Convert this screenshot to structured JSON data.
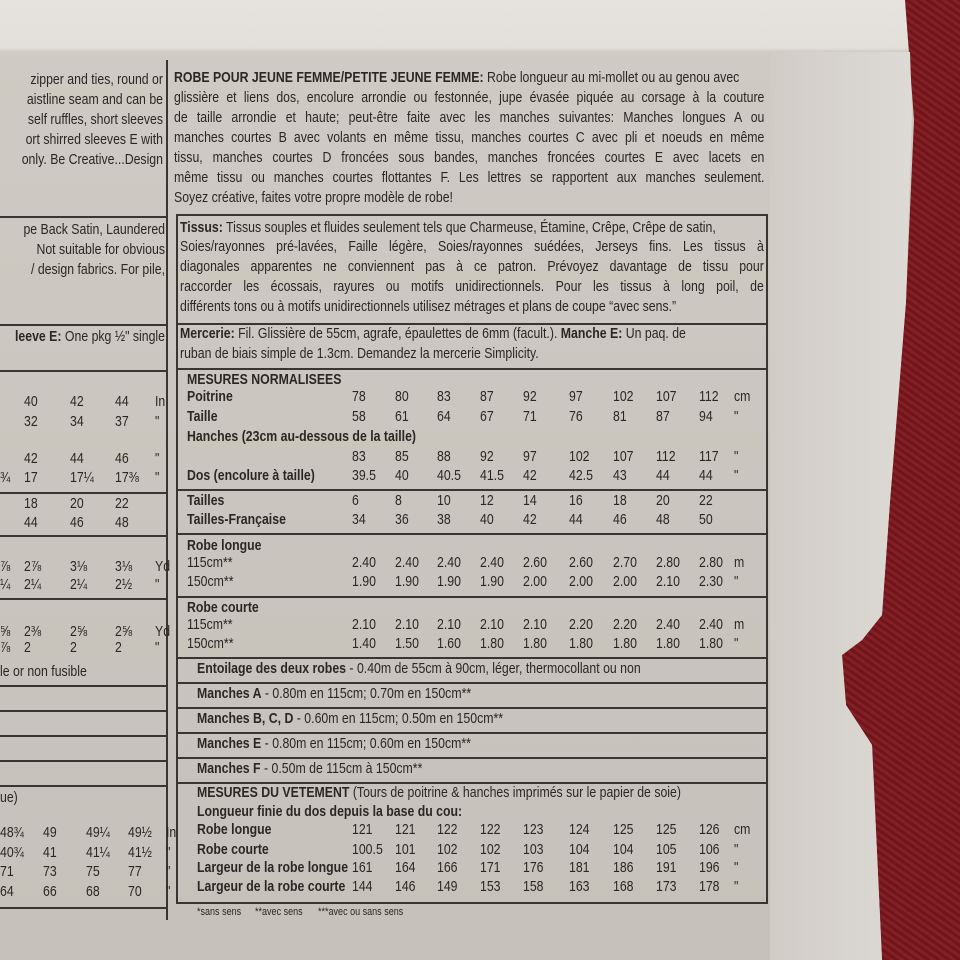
{
  "left_column": {
    "description_lines": [
      "zipper and ties, round or",
      "aistline seam and can be",
      "self ruffles, short sleeves",
      "ort shirred sleeves E with",
      "only. Be Creative...Design"
    ],
    "fabric_lines": [
      "pe Back Satin, Laundered",
      "Not suitable for obvious",
      "/ design fabrics. For pile,"
    ],
    "notions": {
      "bold": "leeve E:",
      "text": " One pkg ½\" single"
    },
    "size_rows": [
      [
        "",
        "40",
        "42",
        "44",
        "In"
      ],
      [
        "",
        "32",
        "34",
        "37",
        "\""
      ],
      [
        "",
        "42",
        "44",
        "46",
        "\""
      ],
      [
        "¾",
        "17",
        "17¼",
        "17⅜",
        "\""
      ],
      [
        "",
        "18",
        "20",
        "22",
        ""
      ],
      [
        "",
        "44",
        "46",
        "48",
        ""
      ],
      [
        "⅞",
        "2⅞",
        "3⅛",
        "3⅛",
        "Yd"
      ],
      [
        "¼",
        "2¼",
        "2¼",
        "2½",
        "\""
      ],
      [
        "⅝",
        "2⅜",
        "2⅝",
        "2⅝",
        "Yd"
      ],
      [
        "⅞",
        "2",
        "2",
        "2",
        "\""
      ]
    ],
    "interfacing_fragment": "le or non fusible",
    "garment_fragment": "ue)",
    "garment_rows": [
      [
        "48¾",
        "49",
        "49¼",
        "49½",
        "In"
      ],
      [
        "40¾",
        "41",
        "41¼",
        "41½",
        "\""
      ],
      [
        "71",
        "73",
        "75",
        "77",
        "\""
      ],
      [
        "64",
        "66",
        "68",
        "70",
        "\""
      ]
    ]
  },
  "right_column": {
    "description": {
      "heading": "ROBE POUR JEUNE FEMME/PETITE JEUNE FEMME:",
      "first_line": " Robe longueur au mi-mollet ou au genou avec",
      "lines": [
        "glissière et liens dos, encolure arrondie ou festonnée, jupe évasée piquée au corsage à la couture",
        "de taille arrondie et haute; peut-être faite avec les manches suivantes: Manches longues A ou",
        "manches courtes B avec volants en même tissu, manches courtes C avec pli et noeuds en même",
        "tissu, manches courtes D froncées sous bandes, manches froncées courtes E avec lacets en",
        "même tissu ou manches courtes flottantes F. Les lettres se rapportent aux manches seulement.",
        "Soyez créative, faites votre propre modèle de robe!"
      ]
    },
    "fabrics": {
      "label": "Tissus:",
      "first_line": " Tissus souples et fluides seulement tels que Charmeuse, Étamine, Crêpe, Crêpe de satin,",
      "lines": [
        "Soies/rayonnes pré-lavées, Faille légère, Soies/rayonnes suédées, Jerseys fins. Les tissus à",
        "diagonales apparentes ne conviennent pas à ce patron. Prévoyez davantage de tissu pour",
        "raccorder les écossais, rayures ou motifs unidirectionnels. Pour les tissus à long poil, de",
        "différents tons ou à motifs unidirectionnels utilisez métrages et plans de coupe “avec sens.”"
      ]
    },
    "notions": {
      "label": "Mercerie:",
      "text1": " Fil. Glissière de 55cm, agrafe, épaulettes de 6mm (facult.). ",
      "label2": "Manche E:",
      "text2": " Un paq. de",
      "line2": "ruban de biais simple de 1.3cm. Demandez la mercerie Simplicity."
    },
    "table": [
      {
        "label": "MESURES NORMALISEES"
      },
      {
        "label": "Poitrine",
        "values": [
          "78",
          "80",
          "83",
          "87",
          "92",
          "97",
          "102",
          "107",
          "112"
        ],
        "unit": "cm"
      },
      {
        "label": "Taille",
        "values": [
          "58",
          "61",
          "64",
          "67",
          "71",
          "76",
          "81",
          "87",
          "94"
        ],
        "unit": "\""
      },
      {
        "label": "Hanches (23cm au-dessous de la taille)"
      },
      {
        "label": "",
        "values": [
          "83",
          "85",
          "88",
          "92",
          "97",
          "102",
          "107",
          "112",
          "117"
        ],
        "unit": "\""
      },
      {
        "label": "Dos (encolure à taille)",
        "values": [
          "39.5",
          "40",
          "40.5",
          "41.5",
          "42",
          "42.5",
          "43",
          "44",
          "44"
        ],
        "unit": "\""
      },
      {
        "label": "Tailles",
        "values": [
          "6",
          "8",
          "10",
          "12",
          "14",
          "16",
          "18",
          "20",
          "22"
        ],
        "unit": ""
      },
      {
        "label": "Tailles-Française",
        "values": [
          "34",
          "36",
          "38",
          "40",
          "42",
          "44",
          "46",
          "48",
          "50"
        ],
        "unit": ""
      },
      {
        "label": "Robe longue"
      },
      {
        "label": "115cm**",
        "values": [
          "2.40",
          "2.40",
          "2.40",
          "2.40",
          "2.60",
          "2.60",
          "2.70",
          "2.80",
          "2.80"
        ],
        "unit": "m"
      },
      {
        "label": "150cm**",
        "values": [
          "1.90",
          "1.90",
          "1.90",
          "1.90",
          "2.00",
          "2.00",
          "2.00",
          "2.10",
          "2.30"
        ],
        "unit": "\""
      },
      {
        "label": "Robe courte"
      },
      {
        "label": "115cm**",
        "values": [
          "2.10",
          "2.10",
          "2.10",
          "2.10",
          "2.10",
          "2.20",
          "2.20",
          "2.40",
          "2.40"
        ],
        "unit": "m"
      },
      {
        "label": "150cm**",
        "values": [
          "1.40",
          "1.50",
          "1.60",
          "1.80",
          "1.80",
          "1.80",
          "1.80",
          "1.80",
          "1.80"
        ],
        "unit": "\""
      },
      {
        "label": "Entoilage des deux robes",
        "text": " - 0.40m de 55cm à 90cm, léger, thermocollant ou non"
      },
      {
        "label": "Manches A",
        "text": " - 0.80m en 115cm; 0.70m en 150cm**"
      },
      {
        "label": "Manches B, C, D",
        "text": " - 0.60m en 115cm; 0.50m en 150cm**"
      },
      {
        "label": "Manches E",
        "text": " - 0.80m en 115cm; 0.60m en 150cm**"
      },
      {
        "label": "Manches F",
        "text": " - 0.50m de 115cm à 150cm**"
      },
      {
        "label": "MESURES DU VETEMENT",
        "text": " (Tours de poitrine & hanches imprimés sur le papier de soie)"
      },
      {
        "label": "Longueur finie du dos depuis la base du cou:"
      },
      {
        "label": "Robe longue",
        "values": [
          "121",
          "121",
          "122",
          "122",
          "123",
          "124",
          "125",
          "125",
          "126"
        ],
        "unit": "cm"
      },
      {
        "label": "Robe courte",
        "values": [
          "100.5",
          "101",
          "102",
          "102",
          "103",
          "104",
          "104",
          "105",
          "106"
        ],
        "unit": "\""
      },
      {
        "label": "Largeur de la robe longue",
        "values": [
          "161",
          "164",
          "166",
          "171",
          "176",
          "181",
          "186",
          "191",
          "196"
        ],
        "unit": "\""
      },
      {
        "label": "Largeur de la robe courte",
        "values": [
          "144",
          "146",
          "149",
          "153",
          "158",
          "163",
          "168",
          "173",
          "178"
        ],
        "unit": "\""
      }
    ],
    "footnotes": [
      "*sans sens",
      "**avec sens",
      "***avec ou sans sens"
    ]
  },
  "colors": {
    "text": "#2b2725",
    "paper": "#cdc8c1",
    "fabric": "#7a1b20"
  }
}
